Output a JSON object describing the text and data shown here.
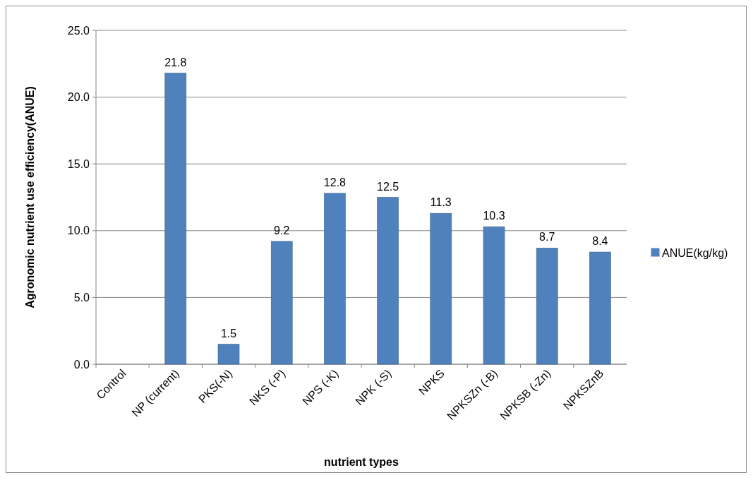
{
  "chart_data": {
    "type": "bar",
    "xlabel": "nutrient types",
    "ylabel": "Agronomic nutrient use efficiency(ANUE)",
    "categories": [
      "Control",
      "NP (current)",
      "PKS(-N)",
      "NKS (-P)",
      "NPS (-K)",
      "NPK (-S)",
      "NPKS",
      "NPKSZn (-B)",
      "NPKSB (-Zn)",
      "NPKSZnB"
    ],
    "series": [
      {
        "name": "ANUE(kg/kg)",
        "color": "#4f81bd",
        "values": [
          null,
          21.8,
          1.5,
          9.2,
          12.8,
          12.5,
          11.3,
          10.3,
          8.7,
          8.4
        ]
      }
    ],
    "ylim": [
      0,
      25
    ],
    "yticks": [
      {
        "value": 0,
        "label": "0.0"
      },
      {
        "value": 5,
        "label": "5.0"
      },
      {
        "value": 10,
        "label": "10.0"
      },
      {
        "value": 15,
        "label": "15.0"
      },
      {
        "value": 20,
        "label": "20.0"
      },
      {
        "value": 25,
        "label": "25.0"
      }
    ],
    "grid": "y",
    "legend": "right",
    "data_labels": true
  }
}
